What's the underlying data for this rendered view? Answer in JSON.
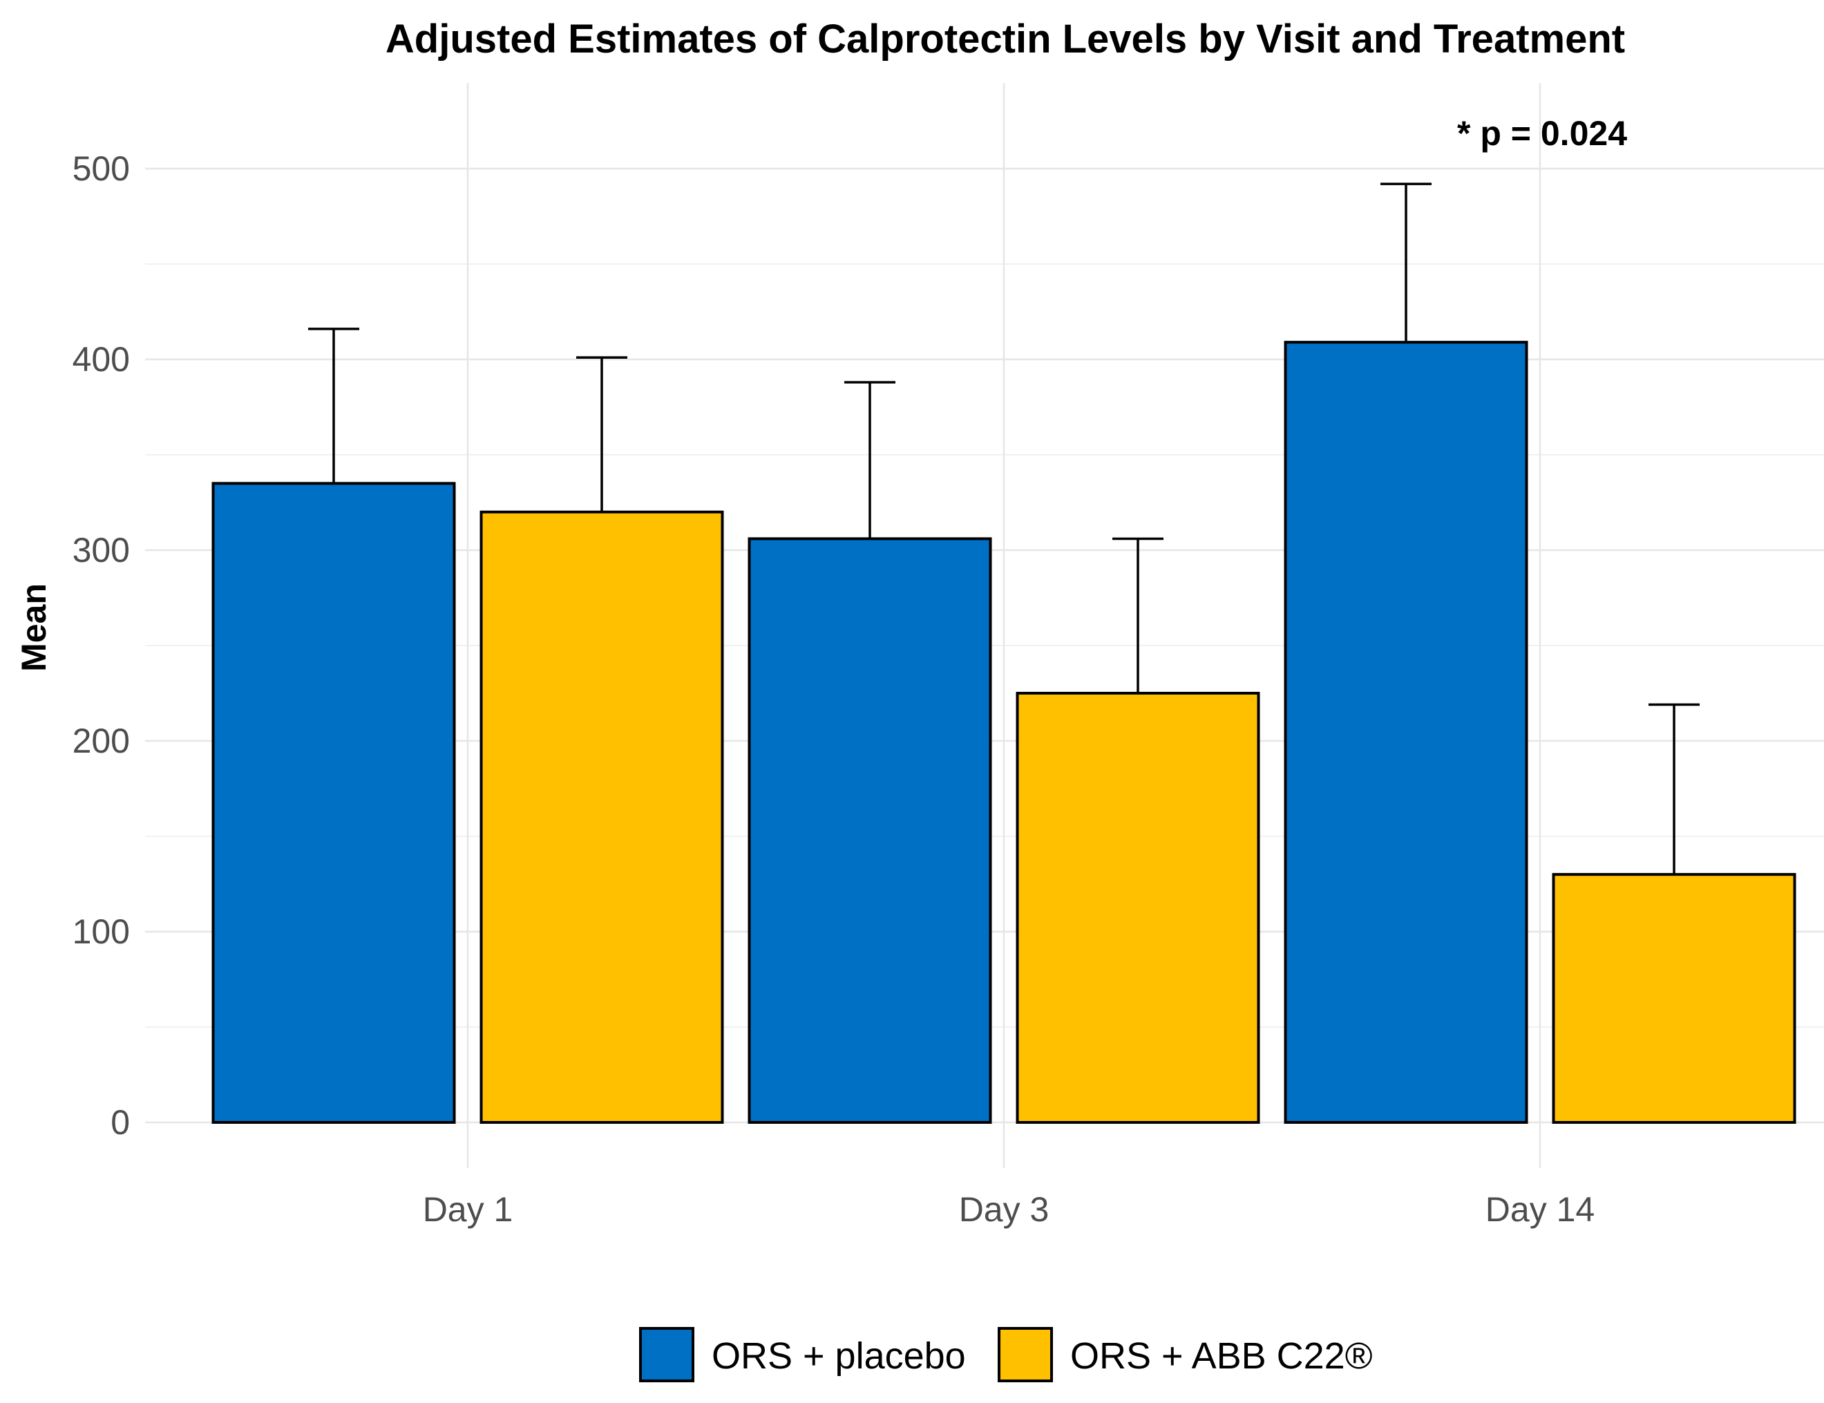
{
  "chart_data": {
    "type": "bar",
    "title": "Adjusted Estimates of Calprotectin Levels by Visit and Treatment",
    "xlabel": "",
    "ylabel": "Mean",
    "ylim": [
      -25,
      545
    ],
    "yticks": [
      0,
      100,
      200,
      300,
      400,
      500
    ],
    "ytick_labels": [
      "0",
      "100",
      "200",
      "300",
      "400",
      "500"
    ],
    "categories": [
      "Day 1",
      "Day 3",
      "Day 14"
    ],
    "series": [
      {
        "name": "ORS + placebo",
        "color": "#0070C4",
        "values": [
          335,
          306,
          409
        ],
        "error_upper": [
          416,
          388,
          492
        ]
      },
      {
        "name": "ORS + ABB C22®",
        "color": "#FFC000",
        "values": [
          320,
          225,
          130
        ],
        "error_upper": [
          401,
          306,
          219
        ]
      }
    ],
    "annotations": [
      {
        "text": "* p = 0.024",
        "category": "Day 14"
      }
    ],
    "legend_position": "bottom",
    "grid": true
  }
}
